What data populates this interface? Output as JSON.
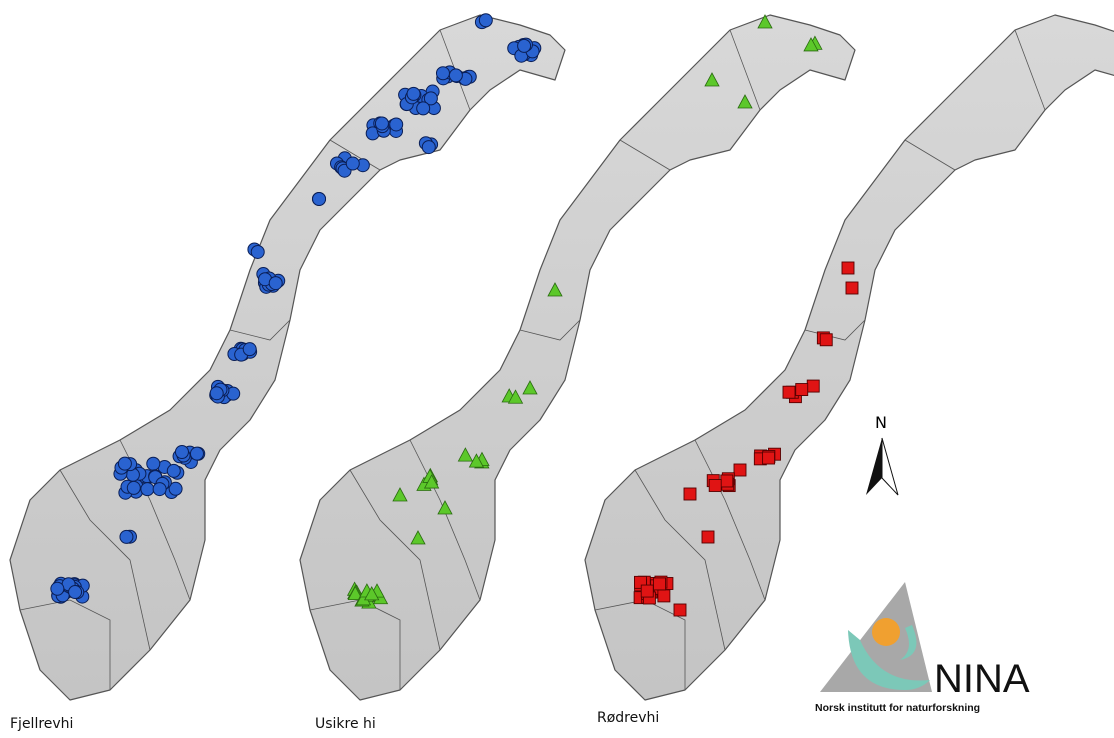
{
  "labels": [
    "Fjellrevhi",
    "Usikre hi",
    "Rødrevhi"
  ],
  "compass": "N",
  "logo": {
    "name": "NINA",
    "subtitle": "Norsk institutt for naturforskning"
  }
}
